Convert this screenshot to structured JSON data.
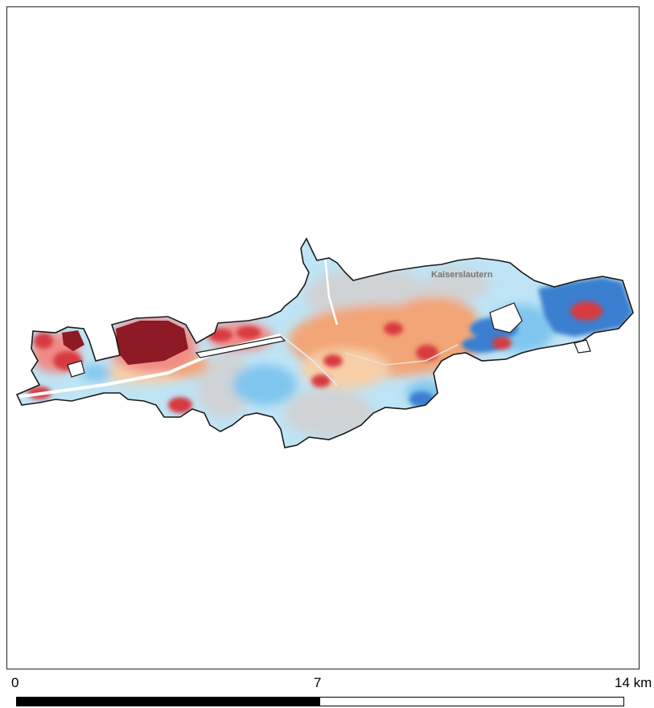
{
  "map": {
    "place_label": "Kaiserslautern",
    "colors": {
      "outline": "#1a1a1a",
      "dark_red": "#8e1a26",
      "red": "#d73a40",
      "pink": "#f08a86",
      "orange": "#f2a577",
      "light_orange": "#f7cfa8",
      "light_blue": "#bfe4f5",
      "sky_blue": "#7fc6ee",
      "blue": "#3a7fd0",
      "gray": "#cfd3d6"
    }
  },
  "scale_bar": {
    "labels": [
      "0",
      "7",
      "14 km"
    ],
    "filled_fraction": 0.5
  }
}
